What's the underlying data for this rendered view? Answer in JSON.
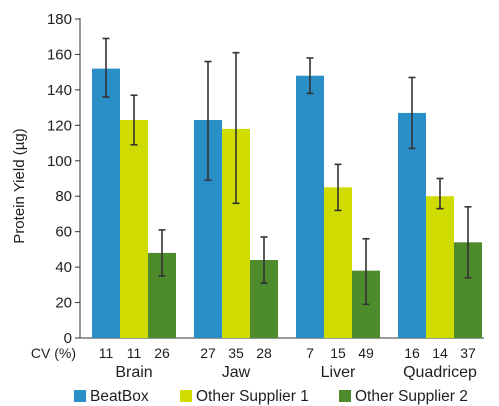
{
  "chart_data": {
    "type": "bar",
    "categories": [
      "Brain",
      "Jaw",
      "Liver",
      "Quadricep"
    ],
    "ylabel": "Protein Yield (µg)",
    "ylim": [
      0,
      180
    ],
    "yticks": [
      0,
      20,
      40,
      60,
      80,
      100,
      120,
      140,
      160,
      180
    ],
    "grid": false,
    "legend_position": "bottom",
    "cv_label": "CV (%)",
    "series": [
      {
        "name": "BeatBox",
        "color": "#2a8fc6",
        "values": [
          152,
          123,
          148,
          127
        ],
        "err_low": [
          136,
          89,
          138,
          107
        ],
        "err_high": [
          169,
          156,
          158,
          147
        ],
        "cv": [
          "11",
          "27",
          "7",
          "16"
        ]
      },
      {
        "name": "Other Supplier 1",
        "color": "#d0dc00",
        "values": [
          123,
          118,
          85,
          80
        ],
        "err_low": [
          109,
          76,
          72,
          73
        ],
        "err_high": [
          137,
          161,
          98,
          90
        ],
        "cv": [
          "11",
          "35",
          "15",
          "14"
        ]
      },
      {
        "name": "Other Supplier 2",
        "color": "#4d8b2c",
        "values": [
          48,
          44,
          38,
          54
        ],
        "err_low": [
          35,
          31,
          19,
          34
        ],
        "err_high": [
          61,
          57,
          56,
          74
        ],
        "cv": [
          "26",
          "28",
          "49",
          "37"
        ]
      }
    ]
  }
}
